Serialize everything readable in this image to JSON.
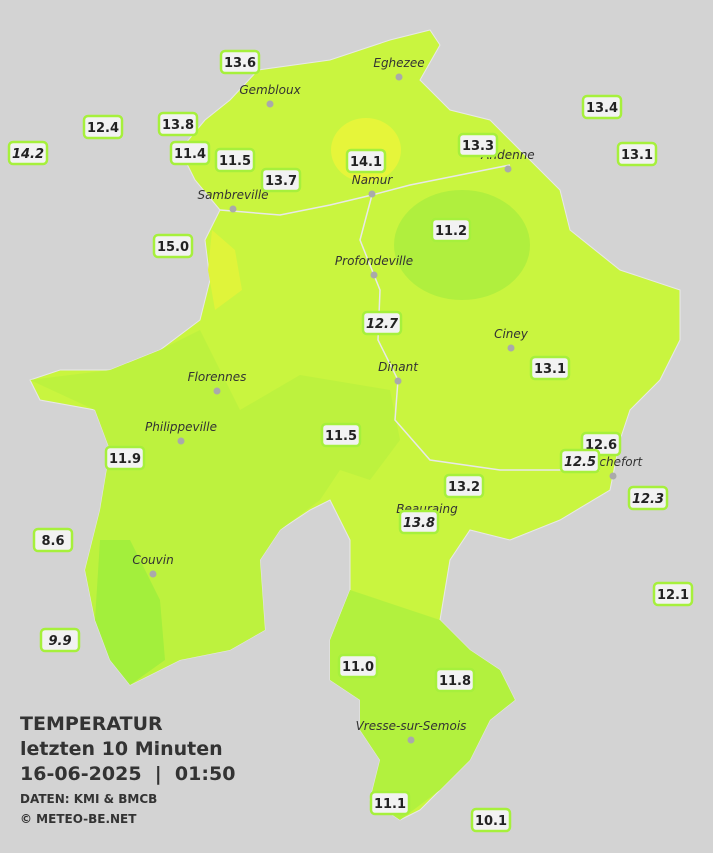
{
  "map": {
    "title": "TEMPERATUR",
    "subtitle": "letzten 10 Minuten",
    "datetime": "16-06-2025  |  01:50",
    "source": "DATEN: KMI & BMCB",
    "copyright": "© METEO-BE.NET",
    "cities": [
      "Eghezee",
      "Gembloux",
      "Andenne",
      "Namur",
      "Sambreville",
      "Profondeville",
      "Ciney",
      "Dinant",
      "Florennes",
      "Philippeville",
      "Rochefort",
      "Beauraing",
      "Couvin",
      "Vresse-sur-Semois"
    ],
    "stations": [
      "13.6",
      "12.4",
      "13.8",
      "14.2",
      "11.4",
      "11.5",
      "14.1",
      "13.7",
      "13.3",
      "13.4",
      "13.1",
      "15.0",
      "11.2",
      "12.7",
      "13.1",
      "11.5",
      "11.9",
      "12.6",
      "12.5",
      "12.3",
      "13.2",
      "13.8",
      "8.6",
      "12.1",
      "9.9",
      "11.0",
      "11.8",
      "11.1",
      "10.1"
    ]
  }
}
